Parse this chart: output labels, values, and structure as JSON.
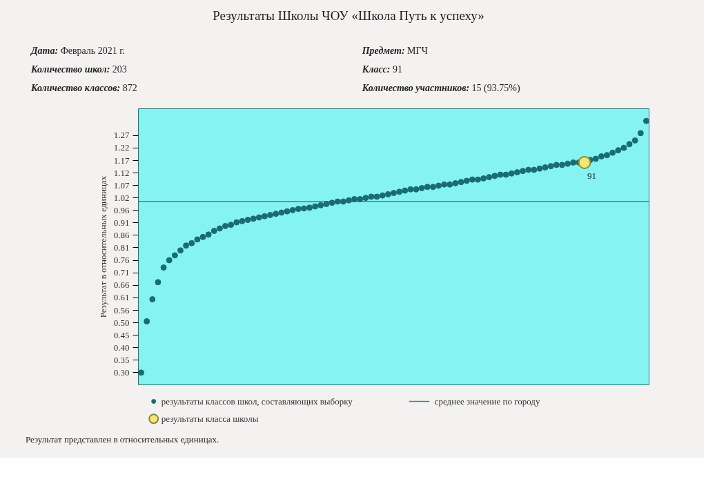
{
  "chart_data": {
    "type": "scatter",
    "title": "Результаты Школы ЧОУ «Школа Путь к успеху»",
    "annotations": [
      "Дата: Февраль 2021 г.",
      "Предмет: МГЧ",
      "Количество школ: 203",
      "Класс: 91",
      "Количество классов: 872",
      "Количество участников: 15 (93.75%)",
      "Результат представлен в относительных единицах.",
      {
        "text": "91",
        "y": 1.16
      }
    ],
    "ylabel": "Результат в относительных единицах",
    "categories": [
      null,
      null,
      null,
      null,
      null,
      null,
      null,
      null,
      null,
      null,
      null,
      null,
      null,
      null,
      null,
      null,
      null,
      null,
      null,
      null,
      null,
      null,
      null,
      null,
      null,
      null,
      null,
      null,
      null,
      null,
      null,
      null,
      null,
      null,
      null,
      null,
      null,
      null,
      null,
      null,
      null,
      null,
      null,
      null,
      null,
      null,
      null,
      null,
      null,
      null,
      null,
      null,
      null,
      null,
      null,
      null,
      null,
      null,
      null,
      null,
      null,
      null,
      null,
      null,
      null,
      null,
      null,
      null,
      null,
      null,
      null,
      null,
      null,
      null,
      null,
      null,
      null,
      null,
      null,
      null,
      null,
      null,
      null,
      null,
      null,
      null,
      null,
      null,
      null,
      null,
      null
    ],
    "series": [
      {
        "name": "результаты классов школ, составляющих выборку",
        "color": "#1a6b73",
        "values": [
          0.3,
          0.51,
          0.6,
          0.67,
          0.73,
          0.76,
          0.78,
          0.8,
          0.82,
          0.83,
          0.845,
          0.855,
          0.865,
          0.88,
          0.89,
          0.9,
          0.905,
          0.915,
          0.92,
          0.925,
          0.93,
          0.935,
          0.94,
          0.945,
          0.95,
          0.955,
          0.96,
          0.965,
          0.97,
          0.972,
          0.975,
          0.98,
          0.985,
          0.99,
          0.995,
          1.0,
          1.0,
          1.005,
          1.01,
          1.01,
          1.015,
          1.02,
          1.02,
          1.025,
          1.03,
          1.035,
          1.04,
          1.045,
          1.05,
          1.05,
          1.055,
          1.06,
          1.06,
          1.065,
          1.07,
          1.07,
          1.075,
          1.08,
          1.085,
          1.09,
          1.09,
          1.095,
          1.1,
          1.105,
          1.11,
          1.11,
          1.115,
          1.12,
          1.125,
          1.13,
          1.13,
          1.135,
          1.14,
          1.145,
          1.15,
          1.15,
          1.155,
          1.16,
          1.16,
          null,
          1.17,
          1.175,
          1.185,
          1.19,
          1.2,
          1.21,
          1.22,
          1.235,
          1.25,
          1.28,
          1.33
        ]
      },
      {
        "name": "результаты класса школы",
        "color": "#f2e67a",
        "values": [
          null,
          null,
          null,
          null,
          null,
          null,
          null,
          null,
          null,
          null,
          null,
          null,
          null,
          null,
          null,
          null,
          null,
          null,
          null,
          null,
          null,
          null,
          null,
          null,
          null,
          null,
          null,
          null,
          null,
          null,
          null,
          null,
          null,
          null,
          null,
          null,
          null,
          null,
          null,
          null,
          null,
          null,
          null,
          null,
          null,
          null,
          null,
          null,
          null,
          null,
          null,
          null,
          null,
          null,
          null,
          null,
          null,
          null,
          null,
          null,
          null,
          null,
          null,
          null,
          null,
          null,
          null,
          null,
          null,
          null,
          null,
          null,
          null,
          null,
          null,
          null,
          null,
          null,
          null,
          1.16,
          null,
          null,
          null,
          null,
          null,
          null,
          null,
          null,
          null,
          null,
          null
        ]
      }
    ],
    "ref_lines": [
      {
        "axis": "y",
        "value": 1.0,
        "label": "среднее значение по городу",
        "color": "#2e8b8b"
      }
    ],
    "ylim": [
      0.25,
      1.38
    ],
    "yticks": [
      {
        "value": 0.3,
        "label": "0.30"
      },
      {
        "value": 0.351,
        "label": "0.35"
      },
      {
        "value": 0.402,
        "label": "0.40"
      },
      {
        "value": 0.453,
        "label": "0.45"
      },
      {
        "value": 0.504,
        "label": "0.50"
      },
      {
        "value": 0.555,
        "label": "0.56"
      },
      {
        "value": 0.606,
        "label": "0.61"
      },
      {
        "value": 0.657,
        "label": "0.66"
      },
      {
        "value": 0.708,
        "label": "0.71"
      },
      {
        "value": 0.759,
        "label": "0.76"
      },
      {
        "value": 0.811,
        "label": "0.81"
      },
      {
        "value": 0.862,
        "label": "0.86"
      },
      {
        "value": 0.913,
        "label": "0.91"
      },
      {
        "value": 0.964,
        "label": "0.96"
      },
      {
        "value": 1.015,
        "label": "1.02"
      },
      {
        "value": 1.066,
        "label": "1.07"
      },
      {
        "value": 1.117,
        "label": "1.12"
      },
      {
        "value": 1.168,
        "label": "1.17"
      },
      {
        "value": 1.219,
        "label": "1.22"
      },
      {
        "value": 1.27,
        "label": "1.27"
      }
    ],
    "tick_labels": "y",
    "grid": false,
    "legend": "bottom",
    "marker": "circle"
  }
}
